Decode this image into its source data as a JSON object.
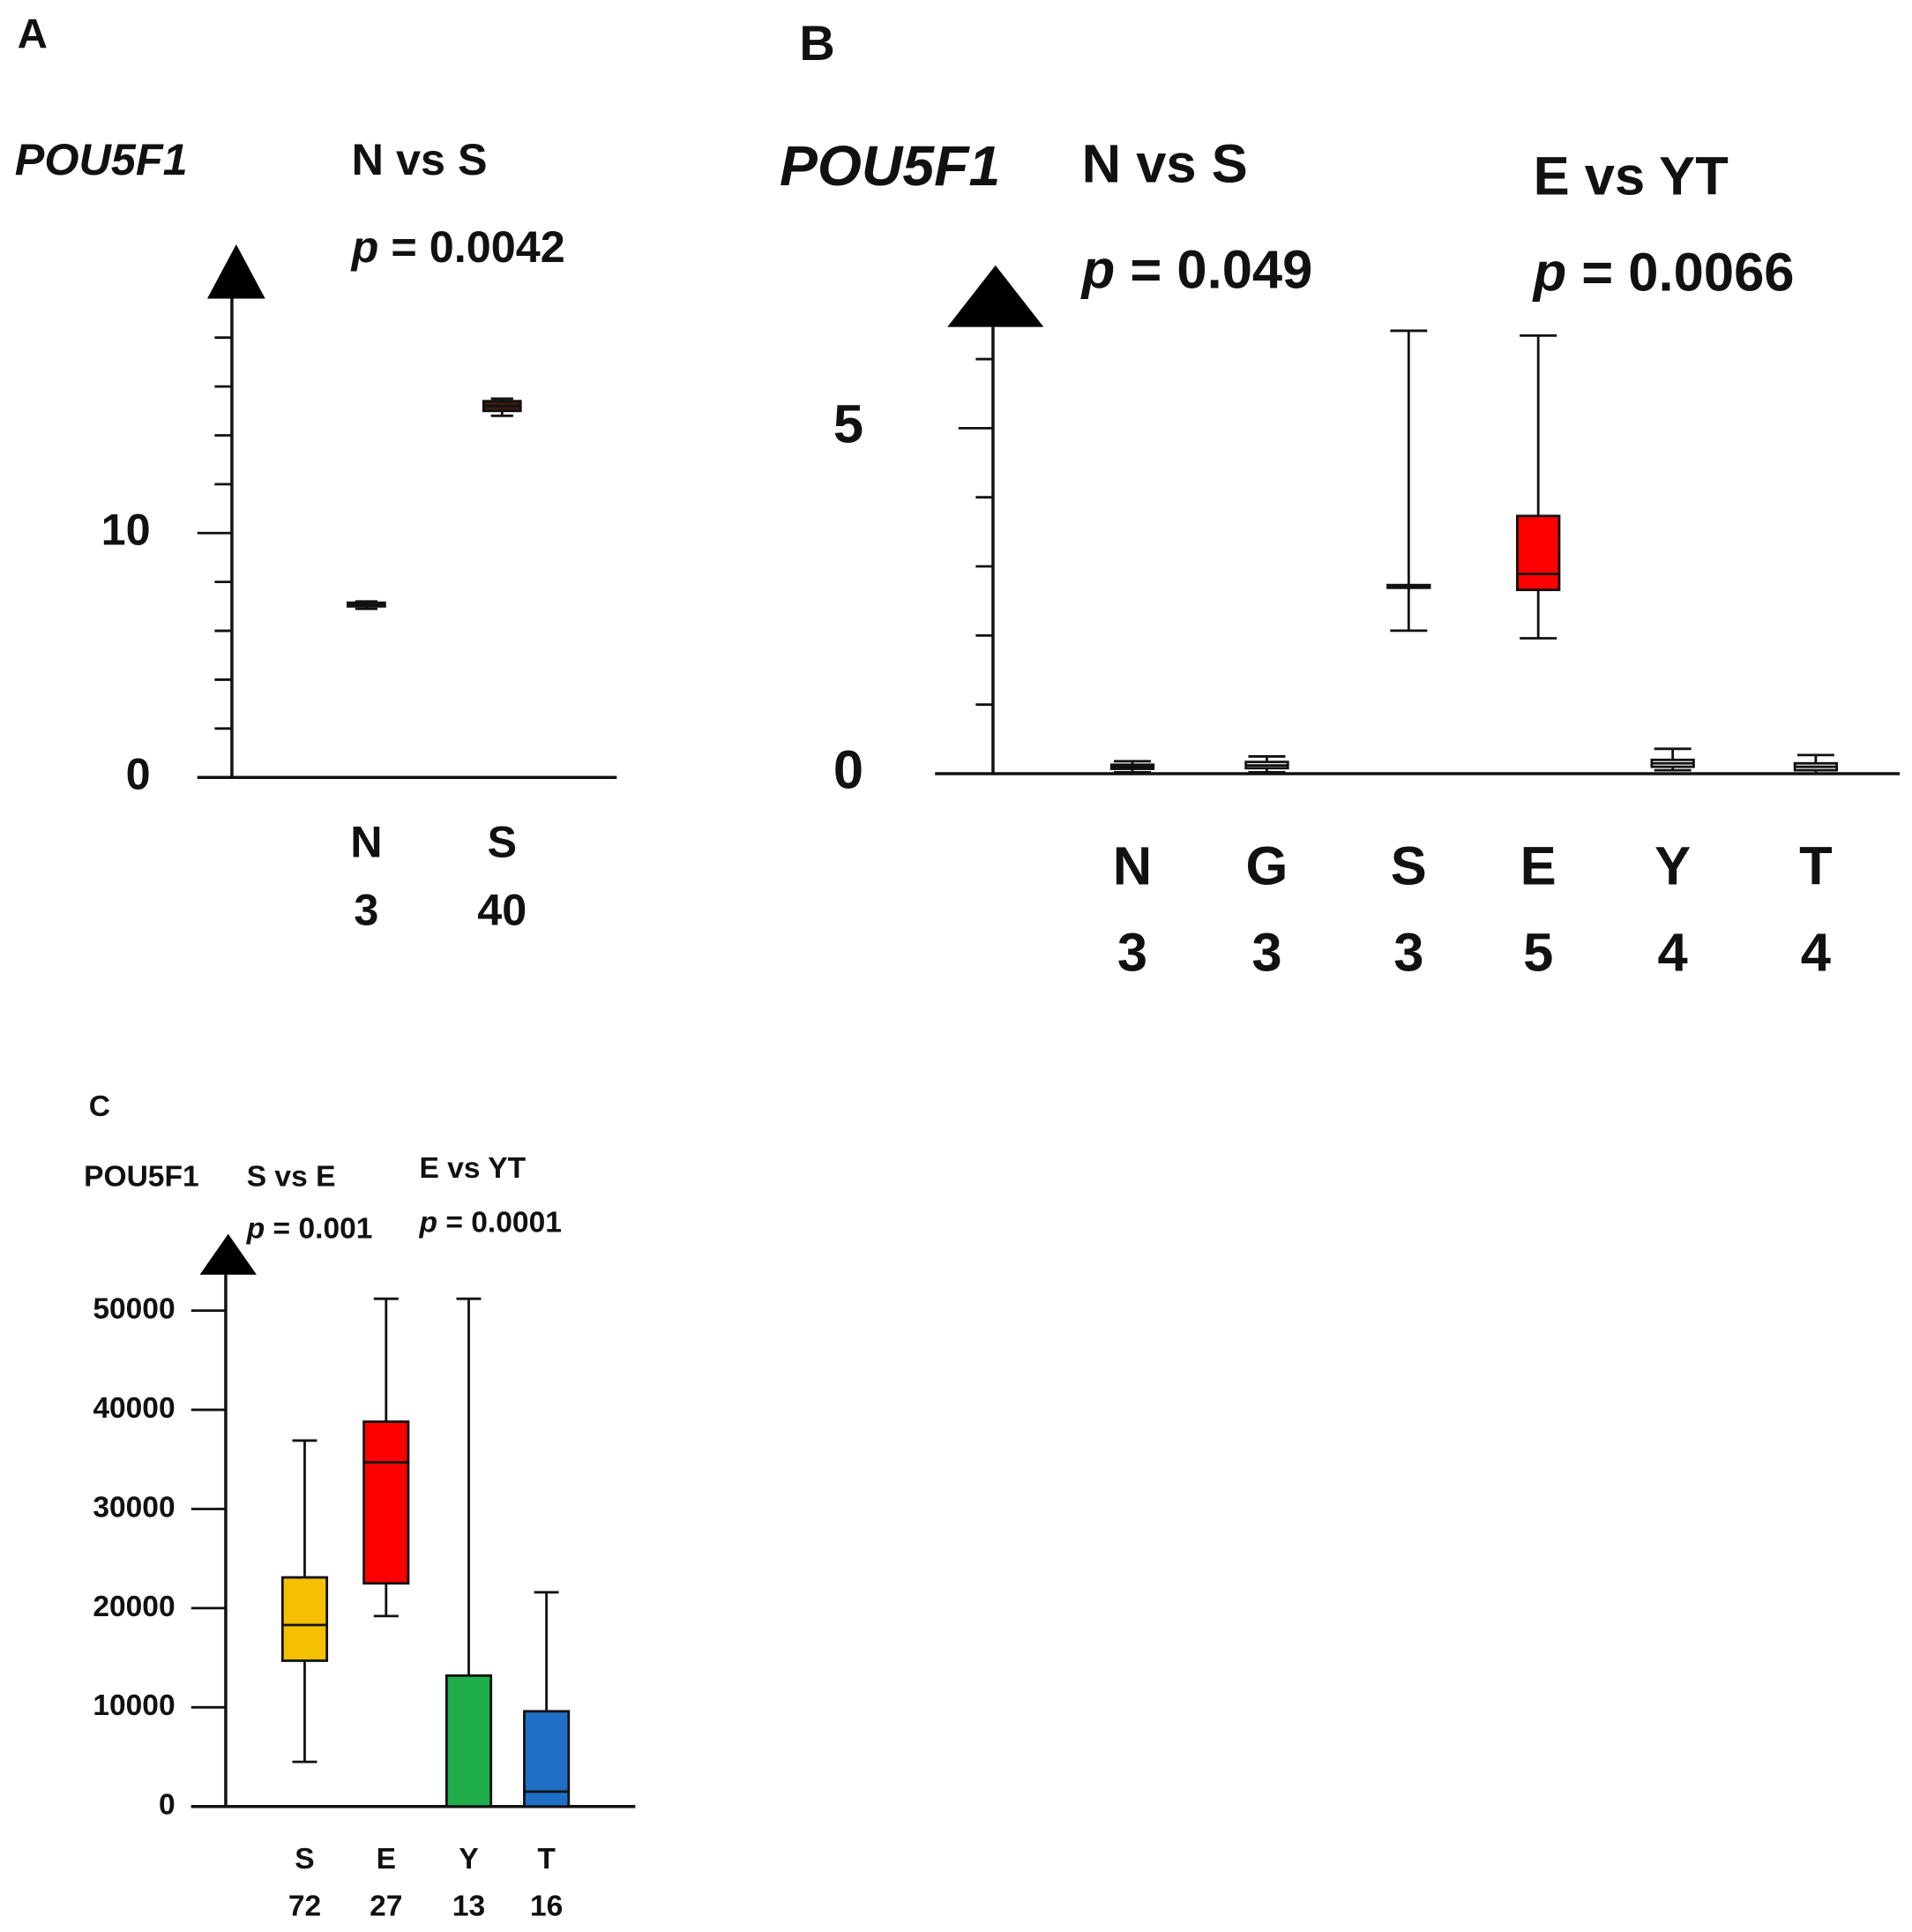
{
  "chart_data": [
    {
      "type": "box",
      "panel": "A",
      "gene": "POU5F1",
      "comparisons": [
        {
          "name": "N vs S",
          "p": "p = 0.0042"
        }
      ],
      "categories": [
        "N",
        "S"
      ],
      "n": [
        3,
        40
      ],
      "boxes": [
        {
          "min": 6.9,
          "q1": 7.0,
          "median": 7.05,
          "q3": 7.15,
          "max": 7.2,
          "color": "#3a1a10"
        },
        {
          "min": 14.8,
          "q1": 15.0,
          "median": 15.2,
          "q3": 15.4,
          "max": 15.5,
          "color": "#3a1a10"
        }
      ],
      "ylim": [
        0,
        20
      ],
      "yticks": [
        0,
        10
      ],
      "minor_yticks": [
        2,
        4,
        6,
        8,
        12,
        14,
        16,
        18
      ]
    },
    {
      "type": "box",
      "panel": "B",
      "gene": "POU5F1",
      "comparisons": [
        {
          "name": "N vs S",
          "p": "p = 0.049"
        },
        {
          "name": "E vs YT",
          "p": "p = 0.0066"
        }
      ],
      "categories": [
        "N",
        "G",
        "S",
        "E",
        "Y",
        "T"
      ],
      "n": [
        3,
        3,
        3,
        5,
        4,
        4
      ],
      "boxes": [
        {
          "min": 0.02,
          "q1": 0.07,
          "median": 0.1,
          "q3": 0.13,
          "max": 0.18,
          "color": "#ffffff"
        },
        {
          "min": 0.02,
          "q1": 0.08,
          "median": 0.12,
          "q3": 0.17,
          "max": 0.25,
          "color": "#ffffff"
        },
        {
          "min": 2.07,
          "q1": 2.69,
          "median": 2.71,
          "q3": 2.73,
          "max": 6.41,
          "color": "#ffffff"
        },
        {
          "min": 1.96,
          "q1": 2.66,
          "median": 2.89,
          "q3": 3.73,
          "max": 6.34,
          "color": "#ff0000"
        },
        {
          "min": 0.05,
          "q1": 0.1,
          "median": 0.15,
          "q3": 0.2,
          "max": 0.36,
          "color": "#ffffff"
        },
        {
          "min": 0.0,
          "q1": 0.05,
          "median": 0.1,
          "q3": 0.15,
          "max": 0.27,
          "color": "#ffffff"
        }
      ],
      "ylim": [
        0,
        6.5
      ],
      "yticks": [
        0,
        5
      ],
      "minor_yticks": [
        1,
        2,
        3,
        4,
        6
      ]
    },
    {
      "type": "box",
      "panel": "C",
      "gene": "POU5F1",
      "comparisons": [
        {
          "name": "S vs E",
          "p": "p = 0.001"
        },
        {
          "name": "E vs YT",
          "p": "p = 0.0001"
        }
      ],
      "categories": [
        "S",
        "E",
        "Y",
        "T"
      ],
      "n": [
        72,
        27,
        13,
        16
      ],
      "boxes": [
        {
          "min": 4500,
          "q1": 14700,
          "median": 18300,
          "q3": 23100,
          "max": 36900,
          "color": "#f5c000"
        },
        {
          "min": 19200,
          "q1": 22500,
          "median": 34700,
          "q3": 38800,
          "max": 51200,
          "color": "#ff0000"
        },
        {
          "min": 0,
          "q1": 0,
          "median": 0,
          "q3": 13200,
          "max": 51200,
          "color": "#1fae4a"
        },
        {
          "min": 0,
          "q1": 0,
          "median": 1500,
          "q3": 9600,
          "max": 21600,
          "color": "#1f6fc6"
        }
      ],
      "ylim": [
        0,
        54000
      ],
      "yticks": [
        0,
        10000,
        20000,
        30000,
        40000,
        50000
      ],
      "minor_yticks": []
    }
  ]
}
